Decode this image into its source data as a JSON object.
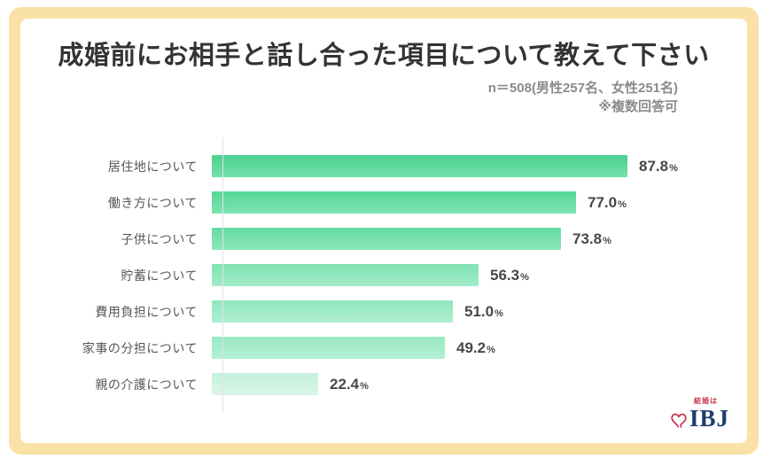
{
  "frame": {
    "border_color": "#FAE2A6"
  },
  "header": {
    "title": "成婚前にお相手と話し合った項目について教えて下さい",
    "sample_note": "n＝508(男性257名、女性251名)",
    "note": "※複数回答可"
  },
  "chart_data": {
    "type": "bar",
    "orientation": "horizontal",
    "title": "成婚前にお相手と話し合った項目について教えて下さい",
    "categories": [
      "居住地について",
      "働き方について",
      "子供について",
      "貯蓄について",
      "費用負担について",
      "家事の分担について",
      "親の介護について"
    ],
    "values": [
      87.8,
      77.0,
      73.8,
      56.3,
      51.0,
      49.2,
      22.4
    ],
    "unit": "%",
    "xlim": [
      0,
      100
    ],
    "grid": false,
    "value_labels": "outside-end",
    "bar_gradients": [
      [
        "#4BD291",
        "#74E0A9"
      ],
      [
        "#56D698",
        "#7EE3B0"
      ],
      [
        "#65DBA1",
        "#8BE6BA"
      ],
      [
        "#80E3B3",
        "#A2EBC8"
      ],
      [
        "#90E7BD",
        "#AEEED1"
      ],
      [
        "#98E9C2",
        "#B4F0D4"
      ],
      [
        "#C4F1DC",
        "#DAF6E8"
      ]
    ],
    "axis_color": "#e2e2e2"
  },
  "logo": {
    "tagline": "結婚は",
    "text": "IBJ",
    "text_color": "#1d3d6e",
    "heart_color": "#c9384e"
  }
}
